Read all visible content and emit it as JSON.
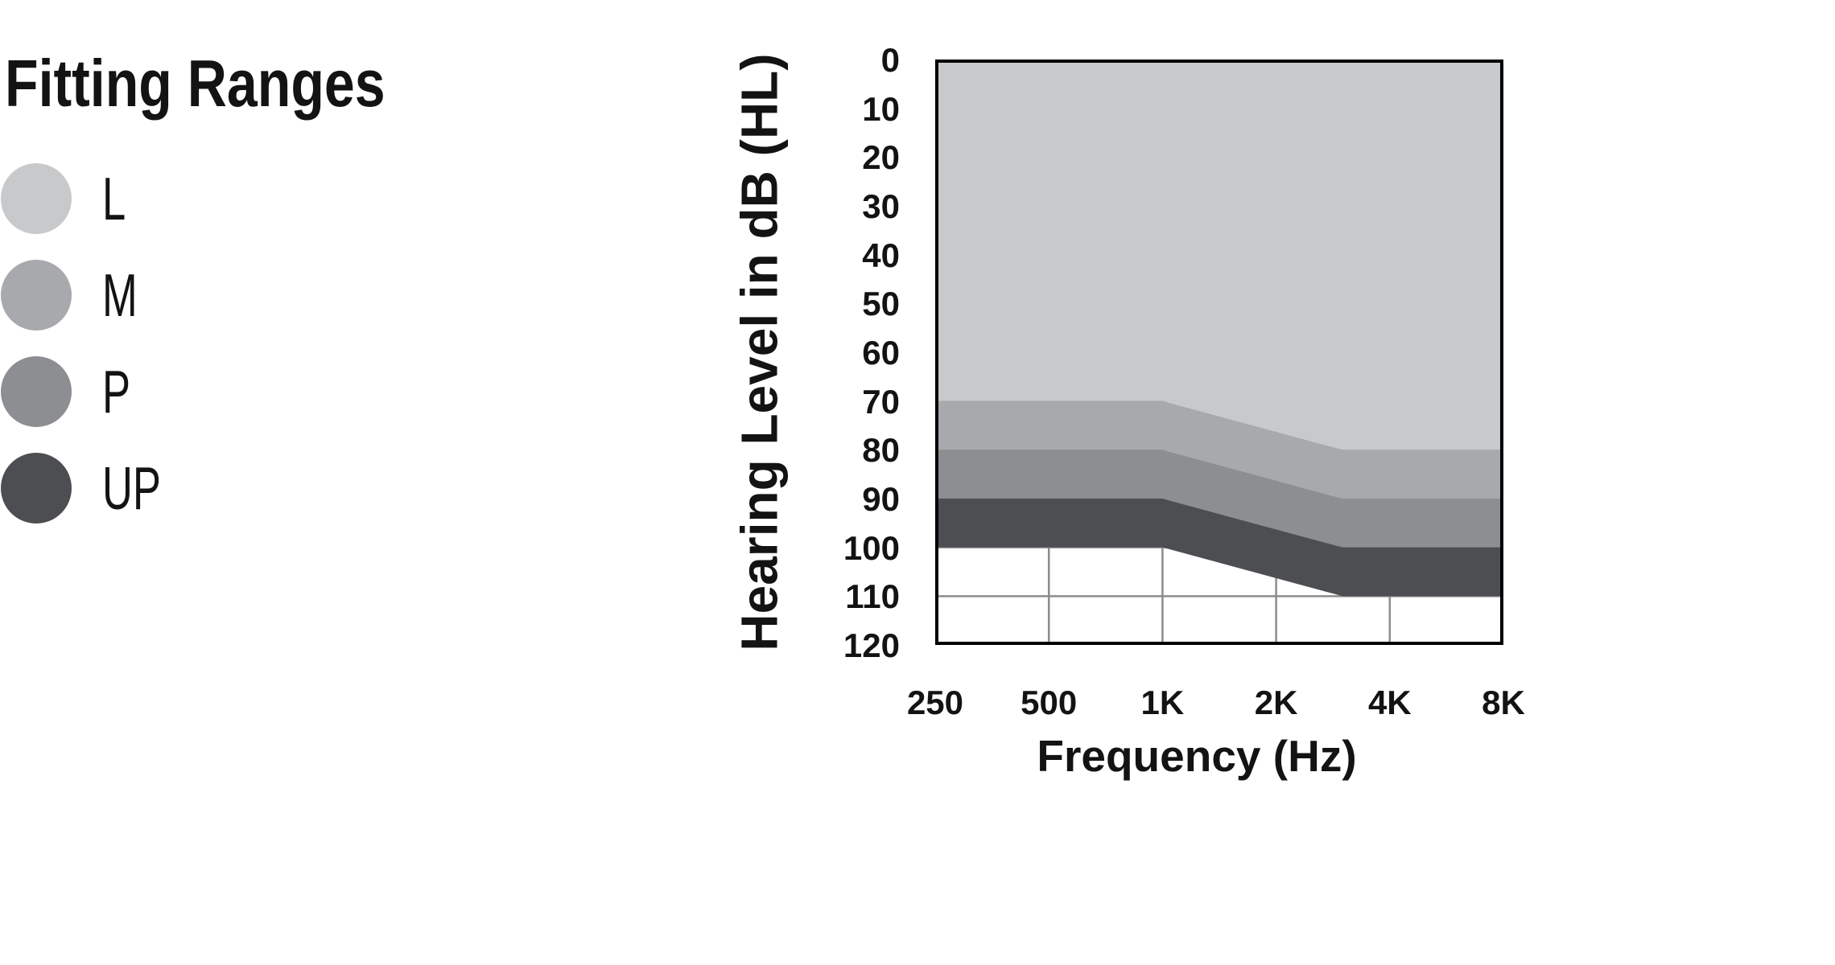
{
  "title": "Fitting Ranges",
  "legend": {
    "position": "left",
    "items": [
      {
        "label": "L",
        "color": "#c8c9cb"
      },
      {
        "label": "M",
        "color": "#a8a9ac"
      },
      {
        "label": "P",
        "color": "#8d8e91"
      },
      {
        "label": "UP",
        "color": "#4d4e51"
      }
    ]
  },
  "chart_data": {
    "type": "area",
    "title": "Fitting Ranges",
    "xlabel": "Frequency (Hz)",
    "ylabel": "Hearing Level in dB (HL)",
    "x_scale": "log2",
    "x_range_hz": [
      250,
      8000
    ],
    "ylim": [
      0,
      120
    ],
    "y_axis_inverted": true,
    "y_ticks": [
      {
        "db": 0,
        "label": "0"
      },
      {
        "db": 10,
        "label": "10"
      },
      {
        "db": 20,
        "label": "20"
      },
      {
        "db": 30,
        "label": "30"
      },
      {
        "db": 40,
        "label": "40"
      },
      {
        "db": 50,
        "label": "50"
      },
      {
        "db": 60,
        "label": "60"
      },
      {
        "db": 70,
        "label": "70"
      },
      {
        "db": 80,
        "label": "80"
      },
      {
        "db": 90,
        "label": "90"
      },
      {
        "db": 100,
        "label": "100"
      },
      {
        "db": 110,
        "label": "110"
      },
      {
        "db": 120,
        "label": "120"
      }
    ],
    "x_ticks": [
      {
        "f": 250,
        "label": "250"
      },
      {
        "f": 500,
        "label": "500"
      },
      {
        "f": 1000,
        "label": "1K"
      },
      {
        "f": 2000,
        "label": "2K"
      },
      {
        "f": 4000,
        "label": "4K"
      },
      {
        "f": 8000,
        "label": "8K"
      }
    ],
    "bands": [
      {
        "name": "L",
        "color": "#c8c9cb",
        "upper_db": [
          [
            250,
            0
          ],
          [
            8000,
            0
          ]
        ],
        "lower_db": [
          [
            250,
            70
          ],
          [
            1000,
            70
          ],
          [
            3000,
            80
          ],
          [
            8000,
            80
          ]
        ]
      },
      {
        "name": "M",
        "color": "#a8a9ac",
        "upper_db": [
          [
            250,
            70
          ],
          [
            1000,
            70
          ],
          [
            3000,
            80
          ],
          [
            8000,
            80
          ]
        ],
        "lower_db": [
          [
            250,
            80
          ],
          [
            1000,
            80
          ],
          [
            3000,
            90
          ],
          [
            8000,
            90
          ]
        ]
      },
      {
        "name": "P",
        "color": "#8d8e91",
        "upper_db": [
          [
            250,
            80
          ],
          [
            1000,
            80
          ],
          [
            3000,
            90
          ],
          [
            8000,
            90
          ]
        ],
        "lower_db": [
          [
            250,
            90
          ],
          [
            1000,
            90
          ],
          [
            3000,
            100
          ],
          [
            8000,
            100
          ]
        ]
      },
      {
        "name": "UP",
        "color": "#4d4e51",
        "upper_db": [
          [
            250,
            90
          ],
          [
            1000,
            90
          ],
          [
            3000,
            100
          ],
          [
            8000,
            100
          ]
        ],
        "lower_db": [
          [
            250,
            100
          ],
          [
            1000,
            100
          ],
          [
            3000,
            110
          ],
          [
            8000,
            110
          ]
        ]
      }
    ],
    "gridlines": {
      "h_db": [
        10,
        20,
        30,
        40,
        50,
        60,
        70,
        80,
        90,
        100,
        110
      ],
      "v_hz": [
        500,
        1000,
        2000,
        4000
      ],
      "color": "#8c8c8c",
      "width": 2.5
    },
    "border_color": "#000000",
    "border_width": 4,
    "background": "#ffffff"
  }
}
